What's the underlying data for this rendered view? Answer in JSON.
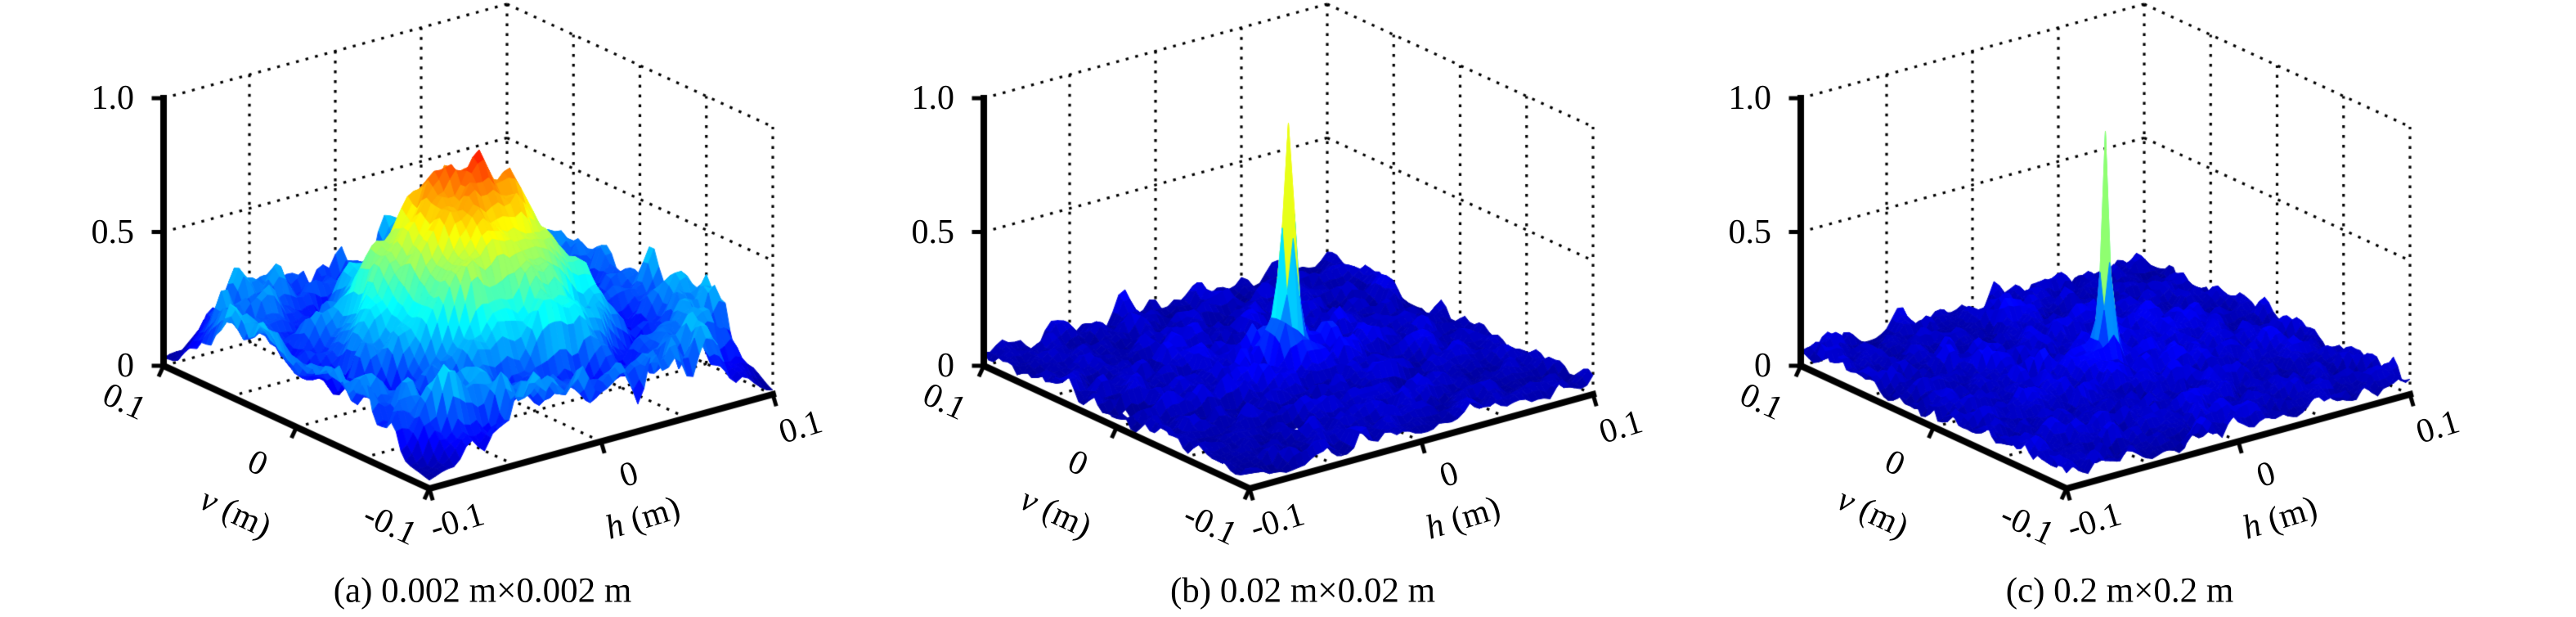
{
  "figure": {
    "background": "#ffffff",
    "text_color": "#000000",
    "axis_color": "#000000",
    "grid_color": "#000000",
    "colormap": "jet",
    "colormap_anchors": [
      "#00008f",
      "#0000ff",
      "#00ffff",
      "#ffff00",
      "#ff0000",
      "#800000"
    ]
  },
  "chart_data": [
    {
      "id": "a",
      "type": "surface",
      "caption": "(a) 0.002 m×0.002 m",
      "xlabel": {
        "var": "h",
        "unit": "(m)"
      },
      "ylabel": {
        "var": "v",
        "unit": "(m)"
      },
      "xlim": [
        -0.1,
        0.1
      ],
      "ylim": [
        -0.1,
        0.1
      ],
      "zlim": [
        0,
        1
      ],
      "x_ticks": {
        "values": [
          -0.1,
          0,
          0.1
        ],
        "labels": [
          "-0.1",
          "0",
          "0.1"
        ]
      },
      "y_ticks": {
        "values": [
          0.1,
          0,
          -0.1
        ],
        "labels": [
          "0.1",
          "0",
          "-0.1"
        ]
      },
      "z_ticks": {
        "values": [
          1.0,
          0.5,
          0
        ],
        "labels": [
          "1.0",
          "0.5",
          "0"
        ]
      },
      "grid_step": 0.05,
      "readings": {
        "peak_value": 0.9,
        "peak_at_h": 0,
        "peak_at_v": 0,
        "mainlobe_half_width_m": 0.05,
        "edge_sidelobe_level": 0.25
      },
      "surface": {
        "kind": "dome",
        "grid_n": 56,
        "peak": 0.82,
        "radial_width": 0.075,
        "radial_power": 1.8,
        "notch_radius": 0.085,
        "notch_power": 1.6,
        "notch_max": 0.88,
        "ring_amp": 0.26,
        "ring_radius": 0.107,
        "ring_width": 0.02,
        "jitter_lo": 0.88,
        "jitter_amp": 0.24,
        "z_max": 0.92,
        "seeds": [
          11,
          23,
          37
        ],
        "blur": [
          2,
          1,
          1
        ],
        "skip_below": 0.02
      }
    },
    {
      "id": "b",
      "type": "surface",
      "caption": "(b) 0.02 m×0.02 m",
      "xlabel": {
        "var": "h",
        "unit": "(m)"
      },
      "ylabel": {
        "var": "v",
        "unit": "(m)"
      },
      "xlim": [
        -0.1,
        0.1
      ],
      "ylim": [
        -0.1,
        0.1
      ],
      "zlim": [
        0,
        1
      ],
      "x_ticks": {
        "values": [
          -0.1,
          0,
          0.1
        ],
        "labels": [
          "-0.1",
          "0",
          "0.1"
        ]
      },
      "y_ticks": {
        "values": [
          0.1,
          0,
          -0.1
        ],
        "labels": [
          "0.1",
          "0",
          "-0.1"
        ]
      },
      "z_ticks": {
        "values": [
          1.0,
          0.5,
          0
        ],
        "labels": [
          "1.0",
          "0.5",
          "0"
        ]
      },
      "grid_step": 0.05,
      "readings": {
        "peak_value": 0.96,
        "peak_at_h": 0,
        "peak_at_v": 0,
        "mainlobe_half_width_m": 0.003,
        "noise_floor_max": 0.3
      },
      "surface": {
        "kind": "spike",
        "grid_n": 56,
        "spike_h": 0.96,
        "spike_w": 0.0032,
        "shoulder_amp": 0.26,
        "shoulder_w": 0.011,
        "noise_base": 0.012,
        "noise_amp": 0.2,
        "noise_pow": 1.4,
        "env_lo": 0.55,
        "env_hi": 0.45,
        "env_r": 0.085,
        "seeds": [
          5,
          17
        ],
        "blur": [
          1,
          1
        ],
        "skip_below": 0.02
      }
    },
    {
      "id": "c",
      "type": "surface",
      "caption": "(c) 0.2 m×0.2 m",
      "xlabel": {
        "var": "h",
        "unit": "(m)"
      },
      "ylabel": {
        "var": "v",
        "unit": "(m)"
      },
      "xlim": [
        -0.1,
        0.1
      ],
      "ylim": [
        -0.1,
        0.1
      ],
      "zlim": [
        0,
        1
      ],
      "x_ticks": {
        "values": [
          -0.1,
          0,
          0.1
        ],
        "labels": [
          "-0.1",
          "0",
          "0.1"
        ]
      },
      "y_ticks": {
        "values": [
          0.1,
          0,
          -0.1
        ],
        "labels": [
          "0.1",
          "0",
          "-0.1"
        ]
      },
      "z_ticks": {
        "values": [
          1.0,
          0.5,
          0
        ],
        "labels": [
          "1.0",
          "0.5",
          "0"
        ]
      },
      "grid_step": 0.05,
      "readings": {
        "peak_value": 0.93,
        "peak_at_h": 0,
        "peak_at_v": 0,
        "mainlobe_half_width_m": 0.002,
        "noise_floor_max": 0.25
      },
      "surface": {
        "kind": "spike",
        "grid_n": 64,
        "spike_h": 0.93,
        "spike_w": 0.0022,
        "shoulder_amp": 0.22,
        "shoulder_w": 0.007,
        "noise_base": 0.012,
        "noise_amp": 0.17,
        "noise_pow": 1.2,
        "env_lo": 0.62,
        "env_hi": 0.38,
        "env_r": 0.09,
        "seeds": [
          9,
          29
        ],
        "blur": [
          1,
          1
        ],
        "skip_below": 0.02
      }
    }
  ]
}
